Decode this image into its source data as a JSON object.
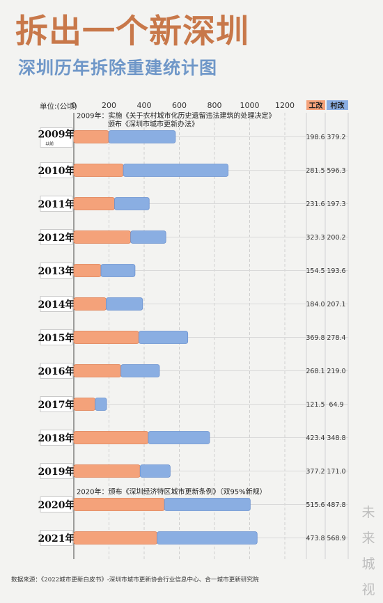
{
  "title": "拆出一个新深圳",
  "subtitle": "深圳历年拆除重建统计图",
  "source": "数据来源：《2022城市更新白皮书》-深圳市城市更新协会行业信息中心、合一城市更新研究院",
  "brand": [
    "未",
    "来",
    "城",
    "视"
  ],
  "colors": {
    "industrial": "#f4a27a",
    "village": "#8aaee2",
    "title": "#c8784a",
    "subtitle": "#6f97c8"
  },
  "chart_data": {
    "type": "bar",
    "orientation": "horizontal",
    "stacked": true,
    "unit_label": "单位:(公顷)",
    "xlim": [
      0,
      1200
    ],
    "x_ticks": [
      "0",
      "200",
      "400",
      "600",
      "800",
      "1000",
      "1200"
    ],
    "grid": true,
    "legend_position": "top-right",
    "categories": [
      {
        "label": "2009年",
        "sublabel": "以前"
      },
      {
        "label": "2010年"
      },
      {
        "label": "2011年"
      },
      {
        "label": "2012年"
      },
      {
        "label": "2013年"
      },
      {
        "label": "2014年"
      },
      {
        "label": "2015年"
      },
      {
        "label": "2016年"
      },
      {
        "label": "2017年"
      },
      {
        "label": "2018年"
      },
      {
        "label": "2019年"
      },
      {
        "label": "2020年"
      },
      {
        "label": "2021年"
      }
    ],
    "series": [
      {
        "name": "工改",
        "values": [
          198.6,
          281.5,
          231.6,
          323.3,
          154.5,
          184.0,
          369.8,
          268.1,
          121.5,
          423.4,
          377.2,
          515.6,
          473.8
        ],
        "labels": [
          "198.6",
          "281.5",
          "231.6",
          "323.3",
          "154.5",
          "184.0",
          "369.8",
          "268.1",
          "121.5",
          "423.4",
          "377.2",
          "515.6",
          "473.8"
        ]
      },
      {
        "name": "村改",
        "values": [
          379.2,
          596.3,
          197.3,
          200.2,
          193.6,
          207.1,
          278.4,
          219.0,
          64.9,
          348.8,
          171.0,
          487.8,
          568.9
        ],
        "labels": [
          "379.2",
          "596.3",
          "197.3",
          "200.2",
          "193.6",
          "207.1",
          "278.4",
          "219.0",
          "64.9",
          "348.8",
          "171.0",
          "487.8",
          "568.9"
        ]
      }
    ],
    "annotations": [
      {
        "category_index": 0,
        "lines": [
          "2009年：实施《关于农村城市化历史遗留违法建筑的处理决定》",
          "颁布《深圳市城市更新办法》"
        ]
      },
      {
        "category_index": 11,
        "lines": [
          "2020年：颁布《深圳经济特区城市更新条例》（双95%新规）"
        ]
      }
    ]
  }
}
